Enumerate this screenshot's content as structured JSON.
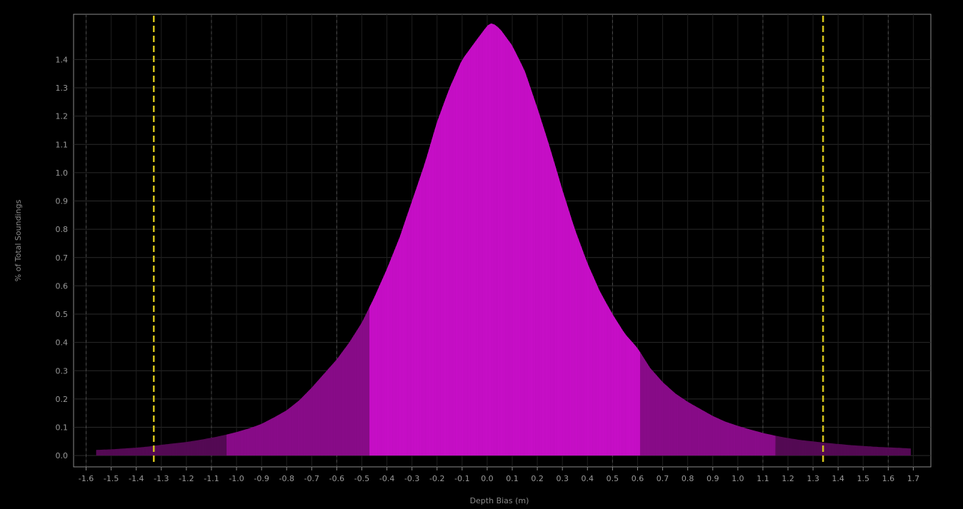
{
  "chart_data": {
    "type": "area",
    "xlabel": "Depth Bias (m)",
    "ylabel": "% of Total Soundings",
    "xlim": [
      -1.65,
      1.77
    ],
    "ylim": [
      -0.04,
      1.56
    ],
    "x_ticks": [
      -1.6,
      -1.5,
      -1.4,
      -1.3,
      -1.2,
      -1.1,
      -1.0,
      -0.9,
      -0.8,
      -0.7,
      -0.6,
      -0.5,
      -0.4,
      -0.3,
      -0.2,
      -0.1,
      0.0,
      0.1,
      0.2,
      0.3,
      0.4,
      0.5,
      0.6,
      0.7,
      0.8,
      0.9,
      1.0,
      1.1,
      1.2,
      1.3,
      1.4,
      1.5,
      1.6,
      1.7
    ],
    "x_tick_labels": [
      "-1.6",
      "-1.5",
      "-1.4",
      "-1.3",
      "-1.2",
      "-1.1",
      "-1.0",
      "-0.9",
      "-0.8",
      "-0.7",
      "-0.6",
      "-0.5",
      "-0.4",
      "-0.3",
      "-0.2",
      "-0.1",
      "0.0",
      "0.1",
      "0.2",
      "0.3",
      "0.4",
      "0.5",
      "0.6",
      "0.7",
      "0.8",
      "0.9",
      "1.0",
      "1.1",
      "1.2",
      "1.3",
      "1.4",
      "1.5",
      "1.6",
      "1.7"
    ],
    "y_ticks": [
      0.0,
      0.1,
      0.2,
      0.3,
      0.4,
      0.5,
      0.6,
      0.7,
      0.8,
      0.9,
      1.0,
      1.1,
      1.2,
      1.3,
      1.4
    ],
    "y_tick_labels": [
      "0.0",
      "0.1",
      "0.2",
      "0.3",
      "0.4",
      "0.5",
      "0.6",
      "0.7",
      "0.8",
      "0.9",
      "1.0",
      "1.1",
      "1.2",
      "1.3",
      "1.4"
    ],
    "grid": true,
    "x_major_grid": [
      -1.6,
      -1.1,
      -0.6,
      0.5,
      1.1,
      1.6
    ],
    "reference_lines": [
      {
        "x": -1.33,
        "color": "#d4c21a",
        "style": "dashed"
      },
      {
        "x": 1.34,
        "color": "#d4c21a",
        "style": "dashed"
      }
    ],
    "series": [
      {
        "x": [
          -1.56,
          -1.5,
          -1.45,
          -1.4,
          -1.35,
          -1.3,
          -1.25,
          -1.2,
          -1.15,
          -1.1,
          -1.05,
          -1.0,
          -0.95,
          -0.9,
          -0.85,
          -0.8,
          -0.75,
          -0.7,
          -0.65,
          -0.6,
          -0.55,
          -0.5,
          -0.45,
          -0.4,
          -0.35,
          -0.3,
          -0.25,
          -0.2,
          -0.15,
          -0.1,
          -0.05,
          0.0,
          0.02,
          0.05,
          0.1,
          0.15,
          0.2,
          0.25,
          0.3,
          0.35,
          0.4,
          0.45,
          0.5,
          0.55,
          0.6,
          0.65,
          0.7,
          0.75,
          0.8,
          0.85,
          0.9,
          0.95,
          1.0,
          1.05,
          1.1,
          1.15,
          1.2,
          1.25,
          1.3,
          1.35,
          1.4,
          1.45,
          1.5,
          1.55,
          1.6,
          1.65,
          1.69
        ],
        "values": [
          0.02,
          0.022,
          0.025,
          0.028,
          0.032,
          0.038,
          0.043,
          0.048,
          0.055,
          0.063,
          0.072,
          0.083,
          0.096,
          0.112,
          0.135,
          0.16,
          0.195,
          0.24,
          0.29,
          0.34,
          0.4,
          0.47,
          0.56,
          0.66,
          0.77,
          0.9,
          1.03,
          1.18,
          1.3,
          1.4,
          1.46,
          1.52,
          1.53,
          1.51,
          1.45,
          1.36,
          1.23,
          1.09,
          0.94,
          0.8,
          0.68,
          0.58,
          0.5,
          0.43,
          0.38,
          0.31,
          0.26,
          0.22,
          0.19,
          0.165,
          0.14,
          0.12,
          0.105,
          0.092,
          0.08,
          0.07,
          0.062,
          0.055,
          0.05,
          0.045,
          0.041,
          0.037,
          0.034,
          0.031,
          0.029,
          0.027,
          0.025
        ]
      }
    ],
    "bands": [
      {
        "from": -1.56,
        "to": -1.04,
        "color": "#5a0a5a"
      },
      {
        "from": -1.04,
        "to": -0.47,
        "color": "#920c92"
      },
      {
        "from": -0.47,
        "to": 0.61,
        "color": "#d40fd4"
      },
      {
        "from": 0.61,
        "to": 1.15,
        "color": "#920c92"
      },
      {
        "from": 1.15,
        "to": 1.69,
        "color": "#5a0a5a"
      }
    ]
  }
}
